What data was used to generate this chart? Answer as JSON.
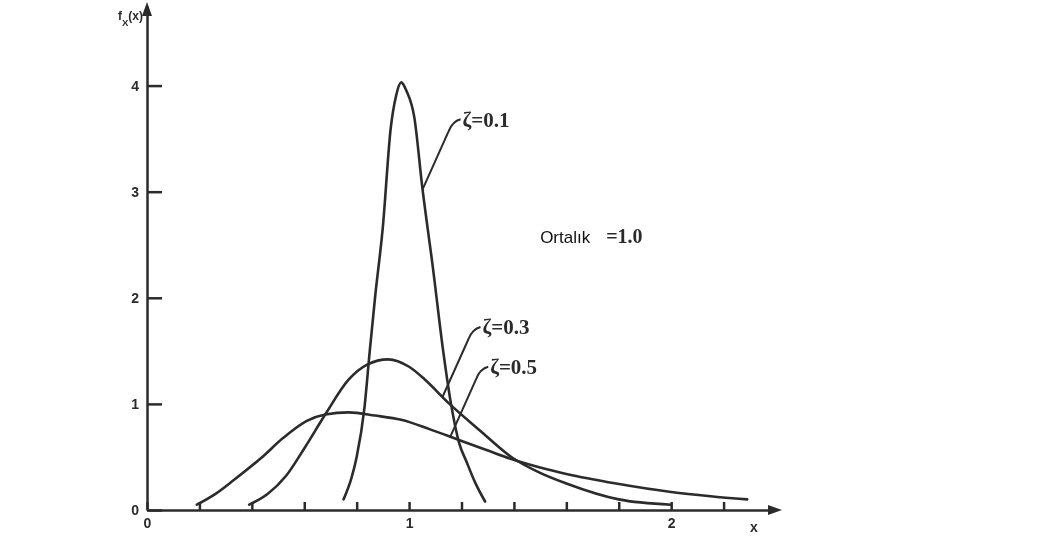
{
  "chart_data": {
    "type": "line",
    "xlabel": "x",
    "ylabel": "f$_{X}$(x)",
    "xlim": [
      0,
      2.4
    ],
    "ylim": [
      0,
      4.75
    ],
    "xticks": [
      0,
      {
        "value": 0.2,
        "label": null
      },
      {
        "value": 0.4,
        "label": null
      },
      {
        "value": 0.6,
        "label": null
      },
      {
        "value": 0.8,
        "label": null
      },
      1,
      {
        "value": 1.2,
        "label": null
      },
      {
        "value": 1.4,
        "label": null
      },
      {
        "value": 1.6,
        "label": null
      },
      {
        "value": 1.8,
        "label": null
      },
      2,
      {
        "value": 2.2,
        "label": null
      }
    ],
    "yticks": [
      0,
      1,
      2,
      3,
      4
    ],
    "annotations": [
      "Ortalık =1.0"
    ],
    "series": [
      {
        "name": "ζ=0.1",
        "color": "#2b2b2b",
        "x": [
          0.75,
          0.78,
          0.8,
          0.83,
          0.85,
          0.87,
          0.9,
          0.93,
          0.95,
          0.97,
          0.99,
          1.02,
          1.05,
          1.09,
          1.13,
          1.16,
          1.19,
          1.22,
          1.25,
          1.29
        ],
        "values": [
          0.1,
          0.3,
          0.5,
          0.97,
          1.5,
          2.0,
          2.67,
          3.6,
          3.9,
          4.03,
          3.95,
          3.7,
          3.05,
          2.3,
          1.5,
          1.0,
          0.64,
          0.45,
          0.27,
          0.08
        ]
      },
      {
        "name": "ζ=0.3",
        "color": "#2b2b2b",
        "x": [
          0.39,
          0.46,
          0.53,
          0.6,
          0.68,
          0.77,
          0.84,
          0.92,
          1.0,
          1.06,
          1.15,
          1.27,
          1.39,
          1.5,
          1.6,
          1.8,
          2.0
        ],
        "values": [
          0.05,
          0.15,
          0.32,
          0.58,
          0.9,
          1.23,
          1.37,
          1.42,
          1.35,
          1.23,
          1.01,
          0.75,
          0.5,
          0.35,
          0.25,
          0.1,
          0.05
        ]
      },
      {
        "name": "ζ=0.5",
        "color": "#2b2b2b",
        "x": [
          0.19,
          0.26,
          0.33,
          0.44,
          0.52,
          0.61,
          0.68,
          0.77,
          0.87,
          0.97,
          1.08,
          1.19,
          1.29,
          1.39,
          1.5,
          1.6,
          1.79,
          2.0,
          2.15,
          2.29
        ],
        "values": [
          0.05,
          0.15,
          0.28,
          0.5,
          0.68,
          0.84,
          0.9,
          0.92,
          0.89,
          0.85,
          0.76,
          0.66,
          0.57,
          0.48,
          0.4,
          0.34,
          0.25,
          0.17,
          0.13,
          0.1
        ]
      }
    ]
  }
}
